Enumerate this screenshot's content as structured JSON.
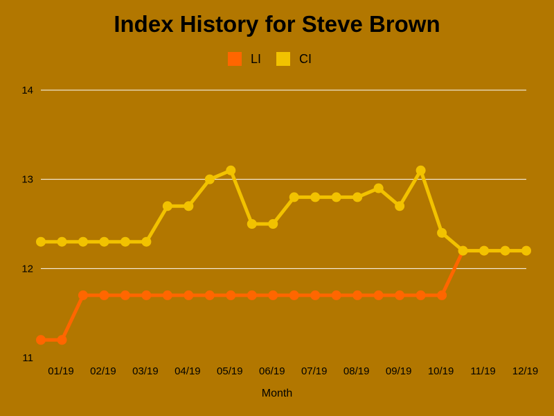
{
  "chart_data": {
    "type": "line",
    "title": "Index History for Steve Brown",
    "xlabel": "Month",
    "ylabel": "",
    "ylim": [
      11,
      14
    ],
    "yticks": [
      11,
      12,
      13,
      14
    ],
    "xtick_labels": [
      "01/19",
      "02/19",
      "03/19",
      "04/19",
      "05/19",
      "06/19",
      "07/19",
      "08/19",
      "09/19",
      "10/19",
      "11/19",
      "12/19"
    ],
    "grid": true,
    "legend_position": "top-center",
    "background": "#b27700",
    "series": [
      {
        "name": "LI",
        "color": "#ff6600",
        "values": [
          11.2,
          11.2,
          11.7,
          11.7,
          11.7,
          11.7,
          11.7,
          11.7,
          11.7,
          11.7,
          11.7,
          11.7,
          11.7,
          11.7,
          11.7,
          11.7,
          11.7,
          11.7,
          11.7,
          11.7,
          12.2,
          12.2,
          12.2,
          12.2
        ]
      },
      {
        "name": "CI",
        "color": "#f2c200",
        "values": [
          12.3,
          12.3,
          12.3,
          12.3,
          12.3,
          12.3,
          12.7,
          12.7,
          13.0,
          13.1,
          12.5,
          12.5,
          12.8,
          12.8,
          12.8,
          12.8,
          12.9,
          12.7,
          13.1,
          12.4,
          12.2,
          12.2,
          12.2,
          12.2
        ]
      }
    ]
  }
}
